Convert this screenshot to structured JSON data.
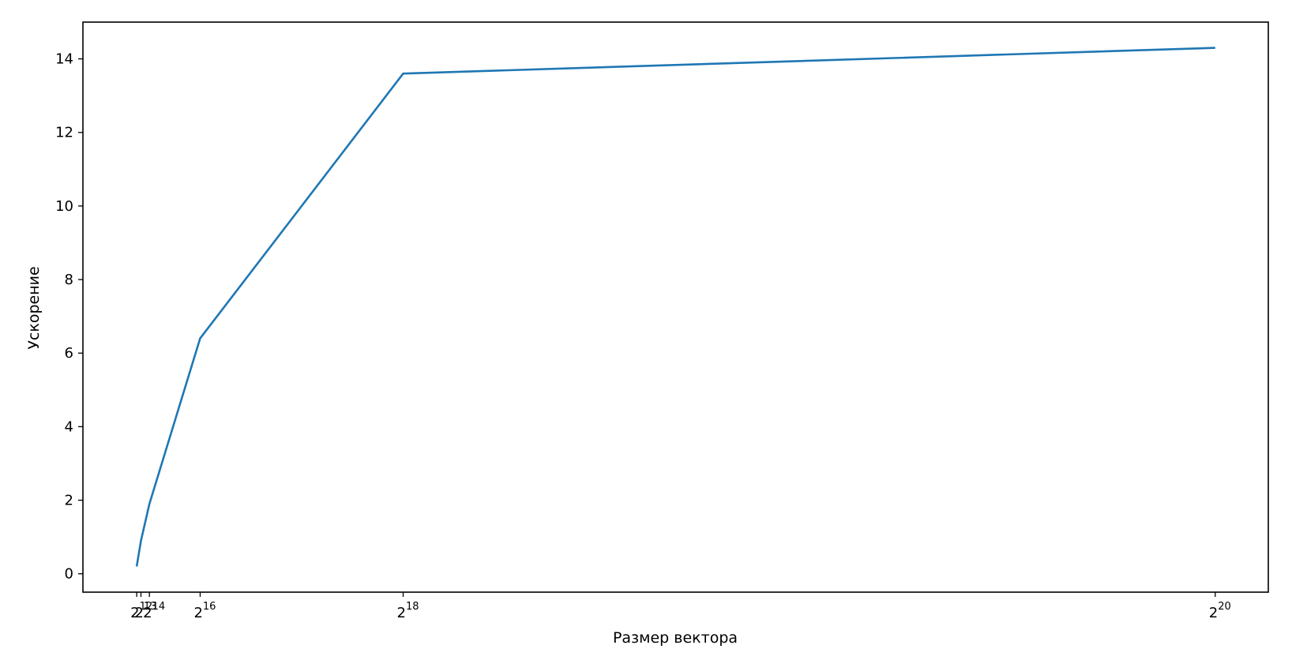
{
  "chart_data": {
    "type": "line",
    "title": "",
    "xlabel": "Размер вектора",
    "ylabel": "Ускорение",
    "x_scale": "linear",
    "x": [
      4096,
      8192,
      16384,
      65536,
      262144,
      1048576
    ],
    "xticks": [
      {
        "value": 4096,
        "base": "2",
        "exp": "12"
      },
      {
        "value": 8192,
        "base": "2",
        "exp": "13"
      },
      {
        "value": 16384,
        "base": "2",
        "exp": "14"
      },
      {
        "value": 65536,
        "base": "2",
        "exp": "16"
      },
      {
        "value": 262144,
        "base": "2",
        "exp": "18"
      },
      {
        "value": 1048576,
        "base": "2",
        "exp": "20"
      }
    ],
    "yticks": [
      0,
      2,
      4,
      6,
      8,
      10,
      12,
      14
    ],
    "xlim": [
      -48000,
      1100000
    ],
    "ylim": [
      -0.5,
      15
    ],
    "grid": false,
    "series": [
      {
        "values": [
          0.2,
          0.9,
          1.9,
          6.4,
          13.6,
          14.3
        ],
        "color": "#1f77b4"
      }
    ]
  }
}
